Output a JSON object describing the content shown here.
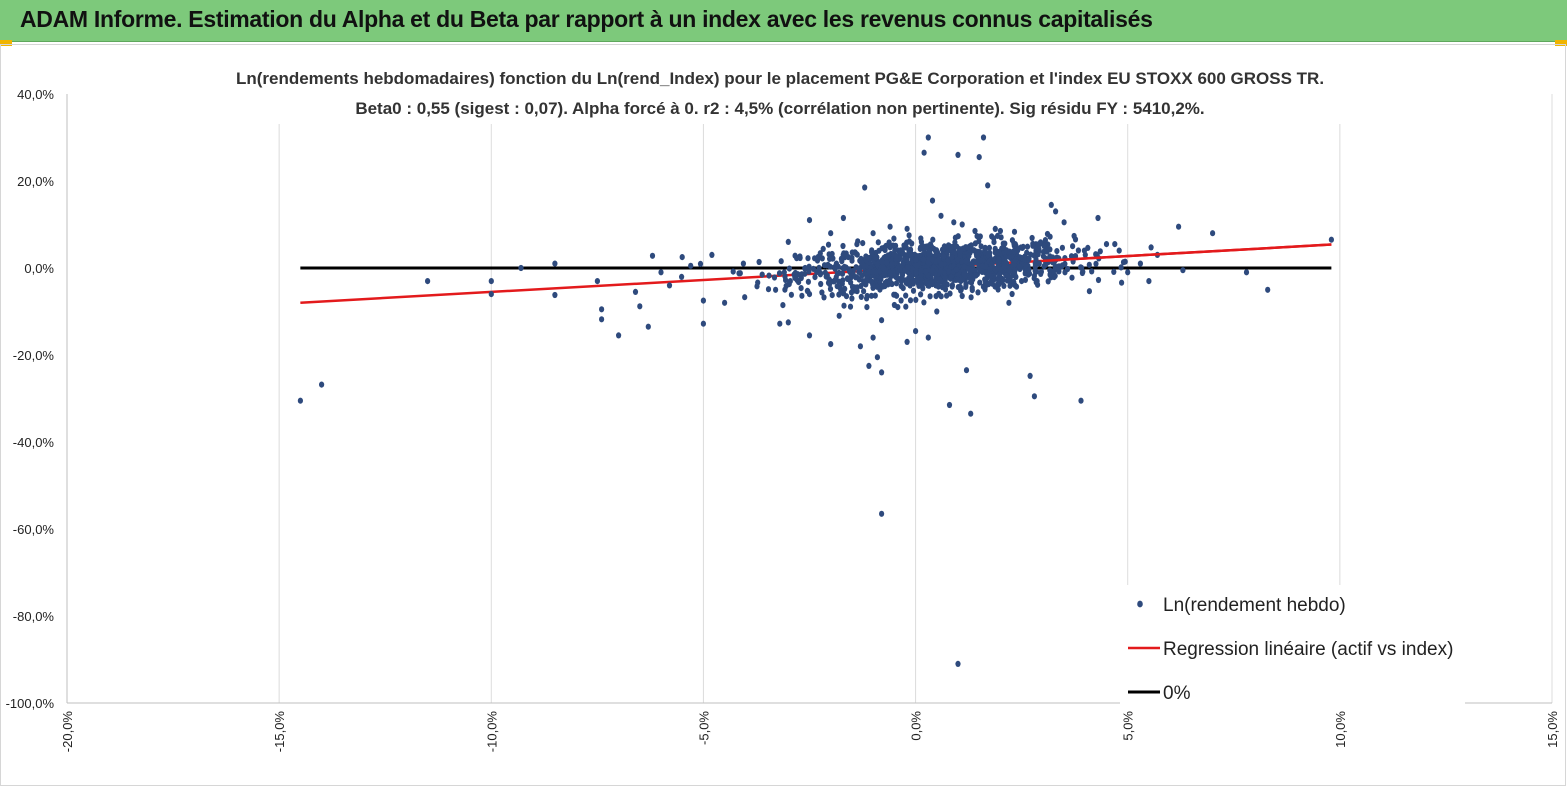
{
  "header": {
    "title": "ADAM Informe. Estimation du Alpha et du Beta par rapport à un index avec les revenus connus capitalisés"
  },
  "colors": {
    "banner": "#7dc97b",
    "points": "#2e4a7d",
    "regression": "#e31a1c",
    "zero_line": "#000000",
    "grid": "#dcdcdc"
  },
  "chart_data": {
    "type": "scatter",
    "title_lines": [
      "Ln(rendements hebdomadaires) fonction du Ln(rend_Index) pour le placement PG&E Corporation et l'index EU STOXX 600 GROSS TR.",
      "Beta0 : 0,55 (sigest : 0,07). Alpha forcé à 0. r2 : 4,5% (corrélation non pertinente). Sig résidu FY : 5410,2%."
    ],
    "xlim": [
      -0.2,
      0.15
    ],
    "ylim": [
      -1.0,
      0.4
    ],
    "x_ticks": [
      "-20,0%",
      "-15,0%",
      "-10,0%",
      "-5,0%",
      "0,0%",
      "5,0%",
      "10,0%",
      "15,0%"
    ],
    "y_ticks": [
      "40,0%",
      "20,0%",
      "0,0%",
      "-20,0%",
      "-40,0%",
      "-60,0%",
      "-80,0%",
      "-100,0%"
    ],
    "vertical_grid": true,
    "horizontal_grid": false,
    "legend_position": "bottom-right",
    "series": [
      {
        "name": "Ln(rendement hebdo)",
        "kind": "scatter",
        "outliers": [
          [
            -0.145,
            -0.305
          ],
          [
            -0.14,
            -0.268
          ],
          [
            -0.115,
            -0.03
          ],
          [
            -0.1,
            -0.03
          ],
          [
            -0.1,
            -0.06
          ],
          [
            -0.093,
            0.0
          ],
          [
            -0.085,
            0.01
          ],
          [
            -0.085,
            -0.062
          ],
          [
            -0.075,
            -0.03
          ],
          [
            -0.074,
            -0.095
          ],
          [
            -0.074,
            -0.118
          ],
          [
            -0.07,
            -0.155
          ],
          [
            -0.066,
            -0.055
          ],
          [
            -0.065,
            -0.088
          ],
          [
            -0.063,
            -0.135
          ],
          [
            -0.062,
            0.028
          ],
          [
            -0.06,
            -0.01
          ],
          [
            -0.058,
            -0.04
          ],
          [
            -0.055,
            0.025
          ],
          [
            -0.053,
            0.005
          ],
          [
            -0.05,
            -0.075
          ],
          [
            -0.05,
            -0.128
          ],
          [
            -0.048,
            0.03
          ],
          [
            -0.045,
            -0.08
          ],
          [
            -0.033,
            -0.05
          ],
          [
            -0.032,
            -0.128
          ],
          [
            -0.03,
            0.06
          ],
          [
            -0.03,
            -0.125
          ],
          [
            -0.025,
            -0.06
          ],
          [
            -0.025,
            -0.155
          ],
          [
            -0.025,
            0.11
          ],
          [
            -0.02,
            -0.175
          ],
          [
            -0.02,
            0.08
          ],
          [
            -0.018,
            -0.11
          ],
          [
            -0.017,
            0.115
          ],
          [
            -0.015,
            -0.07
          ],
          [
            -0.013,
            -0.18
          ],
          [
            -0.012,
            0.185
          ],
          [
            -0.011,
            -0.225
          ],
          [
            -0.01,
            -0.16
          ],
          [
            -0.01,
            0.08
          ],
          [
            -0.009,
            -0.205
          ],
          [
            -0.008,
            -0.12
          ],
          [
            -0.008,
            -0.24
          ],
          [
            -0.008,
            -0.565
          ],
          [
            -0.006,
            0.095
          ],
          [
            -0.005,
            -0.085
          ],
          [
            -0.002,
            -0.17
          ],
          [
            0.0,
            -0.145
          ],
          [
            0.002,
            0.265
          ],
          [
            0.003,
            0.3
          ],
          [
            0.003,
            -0.16
          ],
          [
            0.004,
            0.155
          ],
          [
            0.005,
            -0.1
          ],
          [
            0.006,
            0.12
          ],
          [
            0.008,
            -0.315
          ],
          [
            0.009,
            0.105
          ],
          [
            0.01,
            0.26
          ],
          [
            0.01,
            -0.91
          ],
          [
            0.011,
            0.1
          ],
          [
            0.012,
            -0.235
          ],
          [
            0.013,
            -0.335
          ],
          [
            0.014,
            0.085
          ],
          [
            0.015,
            0.255
          ],
          [
            0.016,
            0.3
          ],
          [
            0.017,
            0.19
          ],
          [
            0.02,
            0.085
          ],
          [
            0.022,
            -0.08
          ],
          [
            0.025,
            -0.03
          ],
          [
            0.027,
            -0.248
          ],
          [
            0.028,
            -0.295
          ],
          [
            0.032,
            0.145
          ],
          [
            0.033,
            0.13
          ],
          [
            0.035,
            0.105
          ],
          [
            0.037,
            0.05
          ],
          [
            0.039,
            -0.305
          ],
          [
            0.04,
            0.03
          ],
          [
            0.043,
            0.115
          ],
          [
            0.045,
            0.055
          ],
          [
            0.048,
            0.04
          ],
          [
            0.05,
            -0.01
          ],
          [
            0.053,
            0.01
          ],
          [
            0.055,
            -0.03
          ],
          [
            0.057,
            0.03
          ],
          [
            0.062,
            0.095
          ],
          [
            0.063,
            -0.005
          ],
          [
            0.07,
            0.08
          ],
          [
            0.078,
            -0.01
          ],
          [
            0.083,
            -0.05
          ],
          [
            0.098,
            0.065
          ]
        ],
        "cluster": {
          "count": 1300,
          "x_mean": 0.005,
          "x_std": 0.016,
          "y_std": 0.028
        }
      },
      {
        "name": "Regression linéaire (actif vs index)",
        "kind": "line",
        "slope": 0.55,
        "x_range": [
          -0.145,
          0.098
        ]
      },
      {
        "name": "0%",
        "kind": "line",
        "y": 0,
        "x_range": [
          -0.145,
          0.098
        ]
      }
    ]
  }
}
